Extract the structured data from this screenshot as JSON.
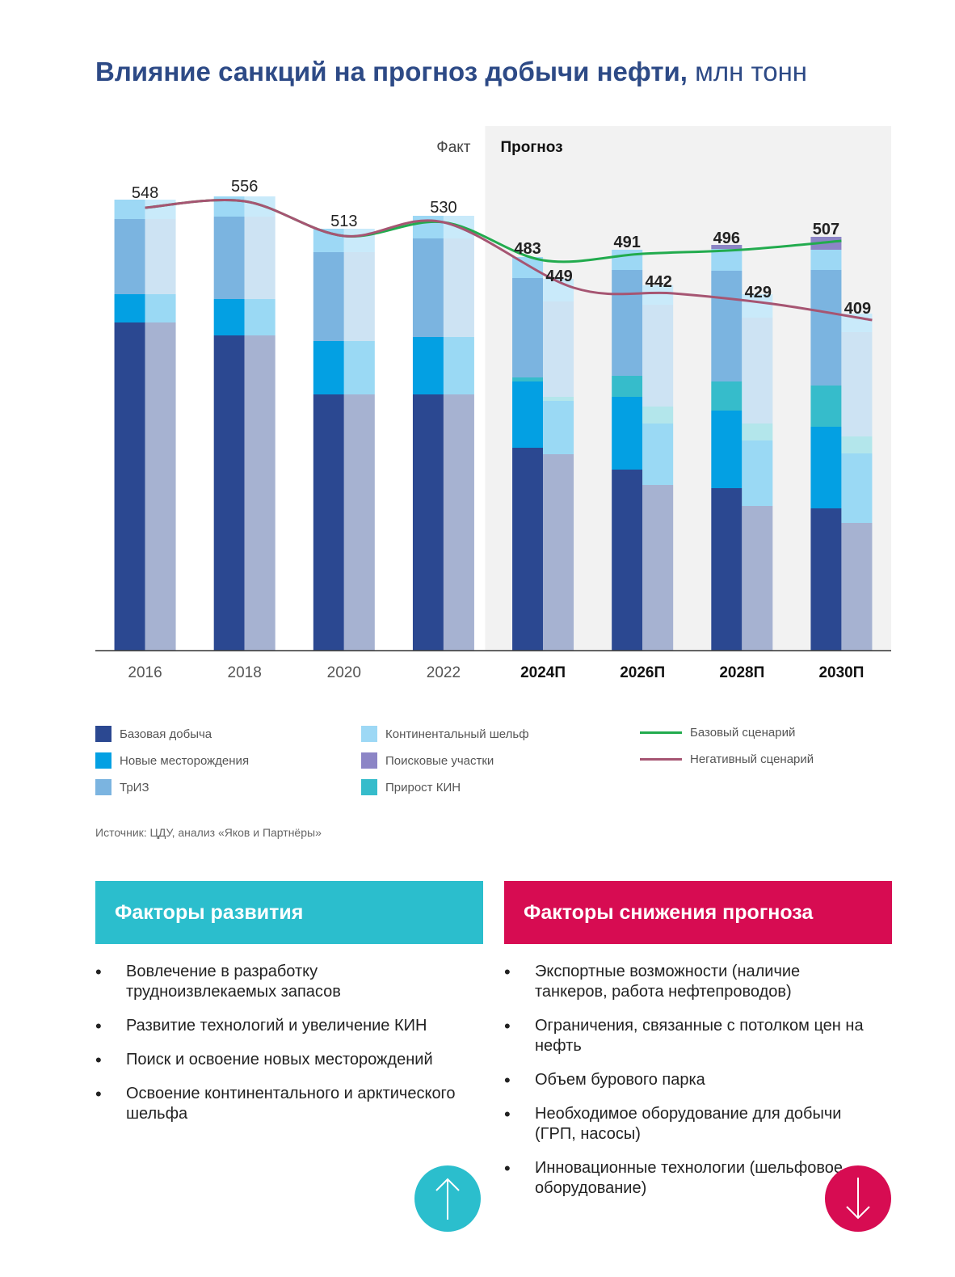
{
  "title": {
    "main": "Влияние санкций на прогноз добычи нефти,",
    "unit": "млн тонн"
  },
  "section_labels": {
    "fact": "Факт",
    "forecast": "Прогноз"
  },
  "source": "Источник: ЦДУ, анализ «Яков и Партнёры»",
  "colors": {
    "base": "#2b4891",
    "new_fields": "#03a0e3",
    "triz": "#7bb4e0",
    "shelf": "#9dd8f5",
    "exploration": "#8c85c6",
    "kin": "#36bccb",
    "base_line": "#22ab4e",
    "neg_line": "#a65572",
    "forecast_bg": "#f2f2f2",
    "panel_left": "#2bbecd",
    "panel_right": "#d70c52"
  },
  "chart_data": {
    "type": "bar",
    "subtype": "stacked grouped bars with lines",
    "unit": "млн тонн",
    "categories": [
      "2016",
      "2018",
      "2020",
      "2022",
      "2024П",
      "2026П",
      "2028П",
      "2030П"
    ],
    "forecast_from_index": 4,
    "ylim": [
      0,
      600
    ],
    "grid": false,
    "legend_position": "bottom",
    "stack_order": [
      "Базовая добыча",
      "Новые месторождения",
      "Прирост КИН",
      "ТрИЗ",
      "Континентальный шельф",
      "Поисковые участки"
    ],
    "groups": [
      {
        "name": "Базовый сценарий",
        "totals": [
          548,
          556,
          513,
          530,
          483,
          491,
          496,
          507
        ],
        "series": [
          {
            "name": "Базовая добыча",
            "values": [
              406,
              390,
              317,
              317,
              251,
              224,
              201,
              176
            ]
          },
          {
            "name": "Новые месторождения",
            "values": [
              35,
              45,
              66,
              71,
              82,
              90,
              96,
              101
            ]
          },
          {
            "name": "Прирост КИН",
            "values": [
              0,
              0,
              0,
              0,
              5,
              26,
              36,
              51
            ]
          },
          {
            "name": "ТрИЗ",
            "values": [
              93,
              102,
              110,
              122,
              123,
              131,
              137,
              143
            ]
          },
          {
            "name": "Континентальный шельф",
            "values": [
              24,
              25,
              29,
              28,
              26,
              25,
              27,
              25
            ]
          },
          {
            "name": "Поисковые участки",
            "values": [
              0,
              0,
              0,
              0,
              0,
              0,
              5,
              16
            ]
          }
        ]
      },
      {
        "name": "Негативный сценарий",
        "totals": [
          548,
          556,
          513,
          530,
          449,
          442,
          429,
          409
        ],
        "series": [
          {
            "name": "Базовая добыча",
            "values": [
              406,
              390,
              317,
              317,
              243,
              205,
              179,
              158
            ]
          },
          {
            "name": "Новые месторождения",
            "values": [
              35,
              45,
              66,
              71,
              66,
              76,
              81,
              86
            ]
          },
          {
            "name": "Прирост КИН",
            "values": [
              0,
              0,
              0,
              0,
              5,
              21,
              21,
              21
            ]
          },
          {
            "name": "ТрИЗ",
            "values": [
              93,
              102,
              110,
              122,
              118,
              126,
              131,
              129
            ]
          },
          {
            "name": "Континентальный шельф",
            "values": [
              24,
              25,
              29,
              28,
              28,
              24,
              29,
              23
            ]
          },
          {
            "name": "Поисковые участки",
            "values": [
              0,
              0,
              0,
              0,
              0,
              0,
              0,
              0
            ]
          }
        ]
      }
    ],
    "lines": [
      {
        "name": "Базовый сценарий",
        "values": [
          548,
          556,
          513,
          530,
          483,
          491,
          496,
          507
        ]
      },
      {
        "name": "Негативный сценарий",
        "values": [
          548,
          556,
          513,
          530,
          449,
          442,
          429,
          409
        ]
      }
    ]
  },
  "legend": {
    "base": "Базовая добыча",
    "new_fields": "Новые месторождения",
    "triz": "ТрИЗ",
    "shelf": "Континентальный шельф",
    "exploration": "Поисковые участки",
    "kin": "Прирост КИН",
    "base_line": "Базовый сценарий",
    "neg_line": "Негативный сценарий"
  },
  "panels": {
    "left": {
      "title": "Факторы развития",
      "icon": "arrow-up-icon",
      "items": [
        "Вовлечение в разработку трудноизвлекаемых запасов",
        "Развитие технологий и увеличение КИН",
        "Поиск и освоение новых месторождений",
        "Освоение континентального и арктического шельфа"
      ]
    },
    "right": {
      "title": "Факторы снижения прогноза",
      "icon": "arrow-down-icon",
      "items": [
        "Экспортные возможности (наличие танкеров, работа нефтепроводов)",
        "Ограничения, связанные с потолком цен на нефть",
        "Объем бурового парка",
        "Необходимое оборудование для добычи (ГРП, насосы)",
        "Инновационные технологии (шельфовое оборудование)"
      ]
    }
  }
}
